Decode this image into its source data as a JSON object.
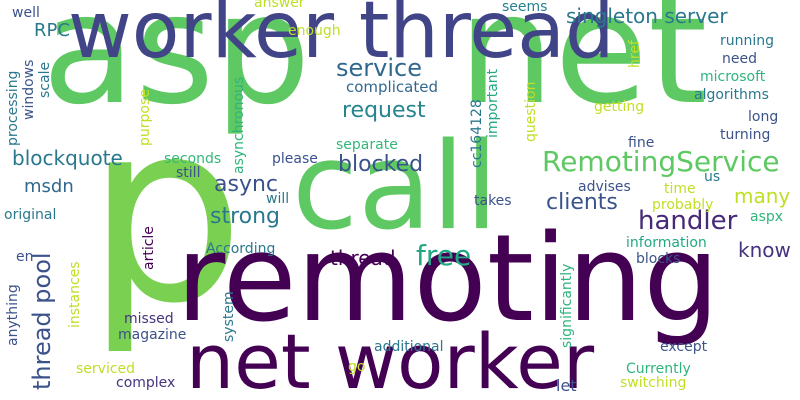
{
  "words": [
    {
      "text": "asp",
      "color": "#5ec962"
    },
    {
      "text": "net",
      "color": "#5ec962"
    },
    {
      "text": "p",
      "color": "#7ad151"
    },
    {
      "text": "remoting",
      "color": "#440154"
    },
    {
      "text": "worker thread",
      "color": "#414487"
    },
    {
      "text": "call",
      "color": "#5ec962"
    },
    {
      "text": "net worker",
      "color": "#440154"
    },
    {
      "text": "thread pool",
      "color": "#3b528b"
    },
    {
      "text": "RemotingService",
      "color": "#5ec962"
    },
    {
      "text": "singleton server",
      "color": "#2a788e"
    },
    {
      "text": "service",
      "color": "#31688e"
    },
    {
      "text": "request",
      "color": "#25848e"
    },
    {
      "text": "handler",
      "color": "#482878"
    },
    {
      "text": "free",
      "color": "#22a884"
    },
    {
      "text": "thread",
      "color": "#440154"
    },
    {
      "text": "async",
      "color": "#3b528b"
    },
    {
      "text": "strong",
      "color": "#2a788e"
    },
    {
      "text": "clients",
      "color": "#3b528b"
    },
    {
      "text": "blocked",
      "color": "#3b528b"
    },
    {
      "text": "blockquote",
      "color": "#2a788e"
    },
    {
      "text": "msdn",
      "color": "#31688e"
    },
    {
      "text": "many",
      "color": "#bddf26"
    },
    {
      "text": "know",
      "color": "#46337e"
    },
    {
      "text": "complicated",
      "color": "#31688e"
    },
    {
      "text": "RPC",
      "color": "#2a788e"
    },
    {
      "text": "well",
      "color": "#3b528b"
    },
    {
      "text": "answer",
      "color": "#bddf26"
    },
    {
      "text": "enough",
      "color": "#bddf26"
    },
    {
      "text": "seems",
      "color": "#26828e"
    },
    {
      "text": "processing",
      "color": "#2a788e"
    },
    {
      "text": "windows",
      "color": "#3b528b"
    },
    {
      "text": "scale",
      "color": "#2a788e"
    },
    {
      "text": "purpose",
      "color": "#c2df23"
    },
    {
      "text": "asynchronous",
      "color": "#2fb47c"
    },
    {
      "text": "seconds",
      "color": "#35b779"
    },
    {
      "text": "still",
      "color": "#3b528b"
    },
    {
      "text": "will",
      "color": "#2a788e"
    },
    {
      "text": "please",
      "color": "#3b528b"
    },
    {
      "text": "separate",
      "color": "#35b779"
    },
    {
      "text": "important",
      "color": "#22a884"
    },
    {
      "text": "cc164128",
      "color": "#2a788e"
    },
    {
      "text": "question",
      "color": "#c2df23"
    },
    {
      "text": "href",
      "color": "#c2df23"
    },
    {
      "text": "running",
      "color": "#2a788e"
    },
    {
      "text": "need",
      "color": "#3b528b"
    },
    {
      "text": "microsoft",
      "color": "#2fb47c"
    },
    {
      "text": "algorithms",
      "color": "#2a788e"
    },
    {
      "text": "getting",
      "color": "#c2df23"
    },
    {
      "text": "long",
      "color": "#3b528b"
    },
    {
      "text": "turning",
      "color": "#3b528b"
    },
    {
      "text": "fine",
      "color": "#3b528b"
    },
    {
      "text": "us",
      "color": "#2a788e"
    },
    {
      "text": "time",
      "color": "#c2df23"
    },
    {
      "text": "advises",
      "color": "#3b528b"
    },
    {
      "text": "probably",
      "color": "#c2df23"
    },
    {
      "text": "takes",
      "color": "#3b528b"
    },
    {
      "text": "aspx",
      "color": "#2fb47c"
    },
    {
      "text": "information",
      "color": "#22a884"
    },
    {
      "text": "blocks",
      "color": "#3b528b"
    },
    {
      "text": "original",
      "color": "#2a788e"
    },
    {
      "text": "article",
      "color": "#440154"
    },
    {
      "text": "According",
      "color": "#2a788e"
    },
    {
      "text": "en",
      "color": "#3b528b"
    },
    {
      "text": "instances",
      "color": "#bddf26"
    },
    {
      "text": "anything",
      "color": "#3b528b"
    },
    {
      "text": "system",
      "color": "#2a788e"
    },
    {
      "text": "missed",
      "color": "#46337e"
    },
    {
      "text": "magazine",
      "color": "#3b528b"
    },
    {
      "text": "significantly",
      "color": "#2fb47c"
    },
    {
      "text": "additional",
      "color": "#2a788e"
    },
    {
      "text": "except",
      "color": "#3b528b"
    },
    {
      "text": "serviced",
      "color": "#bddf26"
    },
    {
      "text": "go",
      "color": "#c2df23"
    },
    {
      "text": "Currently",
      "color": "#2fb47c"
    },
    {
      "text": "complex",
      "color": "#46337e"
    },
    {
      "text": "let",
      "color": "#3b528b"
    },
    {
      "text": "switching",
      "color": "#c2df23"
    }
  ]
}
